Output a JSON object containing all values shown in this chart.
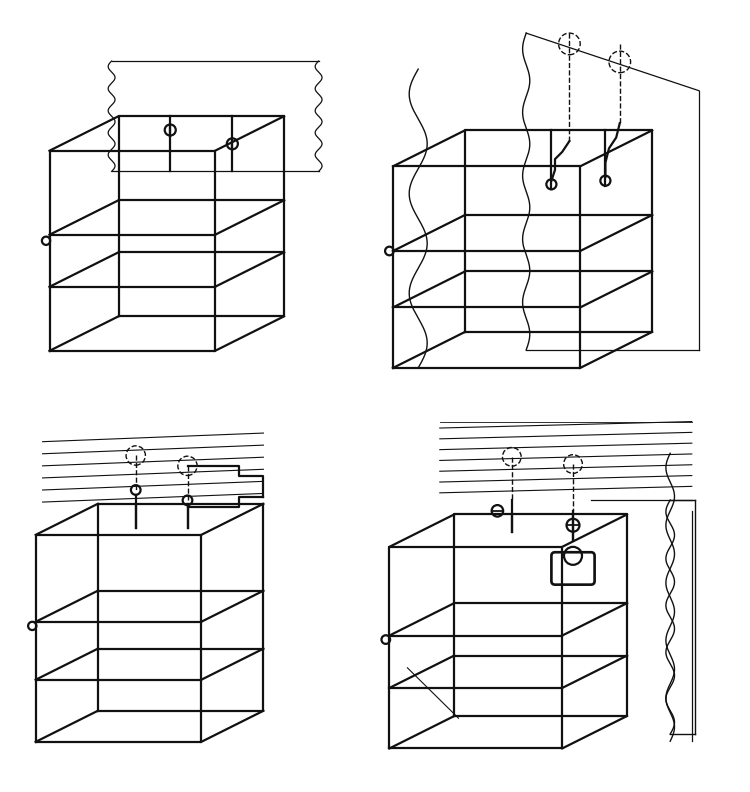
{
  "background_color": "#ffffff",
  "line_color": "#111111",
  "lw": 1.6,
  "lw_thin": 1.0,
  "fig_width": 7.5,
  "fig_height": 7.92,
  "dpi": 100
}
